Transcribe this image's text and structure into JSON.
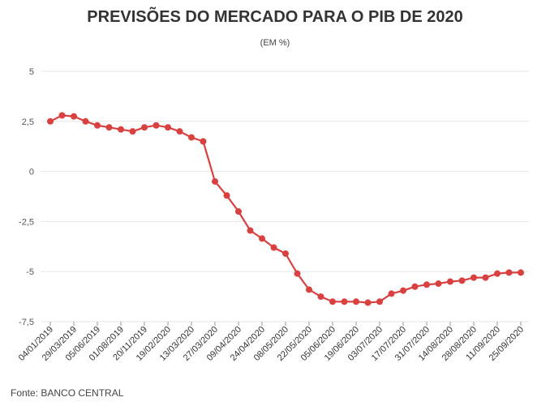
{
  "title": "PREVISÕES DO MERCADO PARA O PIB DE 2020",
  "subtitle": "(EM %)",
  "source": "Fonte: BANCO CENTRAL",
  "colors": {
    "line": "#d94040",
    "grid": "#e6e6e6",
    "axis": "#555555"
  },
  "chart_data": {
    "type": "line",
    "title": "PREVISÕES DO MERCADO PARA O PIB DE 2020",
    "subtitle": "(EM %)",
    "xlabel": "",
    "ylabel": "",
    "ylim": [
      -7.5,
      5
    ],
    "yticks": [
      5,
      2.5,
      0,
      -2.5,
      -5,
      -7.5
    ],
    "ytick_labels": [
      "5",
      "2,5",
      "0",
      "-2,5",
      "-5",
      "-7,5"
    ],
    "grid": true,
    "x_tick_labels": [
      "04/01/2019",
      "29/03/2019",
      "05/06/2019",
      "01/08/2019",
      "20/11/2019",
      "19/02/2020",
      "13/03/2020",
      "27/03/2020",
      "09/04/2020",
      "24/04/2020",
      "08/05/2020",
      "22/05/2020",
      "05/06/2020",
      "19/06/2020",
      "03/07/2020",
      "17/07/2020",
      "31/07/2020",
      "14/08/2020",
      "28/08/2020",
      "11/09/2020",
      "25/09/2020"
    ],
    "series": [
      {
        "values": [
          2.5,
          2.8,
          2.75,
          2.5,
          2.3,
          2.2,
          2.1,
          2.0,
          2.2,
          2.3,
          2.2,
          2.0,
          1.7,
          1.5,
          -0.5,
          -1.2,
          -2.0,
          -2.95,
          -3.35,
          -3.8,
          -4.1,
          -5.1,
          -5.9,
          -6.25,
          -6.5,
          -6.5,
          -6.5,
          -6.55,
          -6.5,
          -6.1,
          -5.95,
          -5.75,
          -5.65,
          -5.6,
          -5.5,
          -5.45,
          -5.3,
          -5.3,
          -5.1,
          -5.05,
          -5.05
        ]
      }
    ]
  }
}
